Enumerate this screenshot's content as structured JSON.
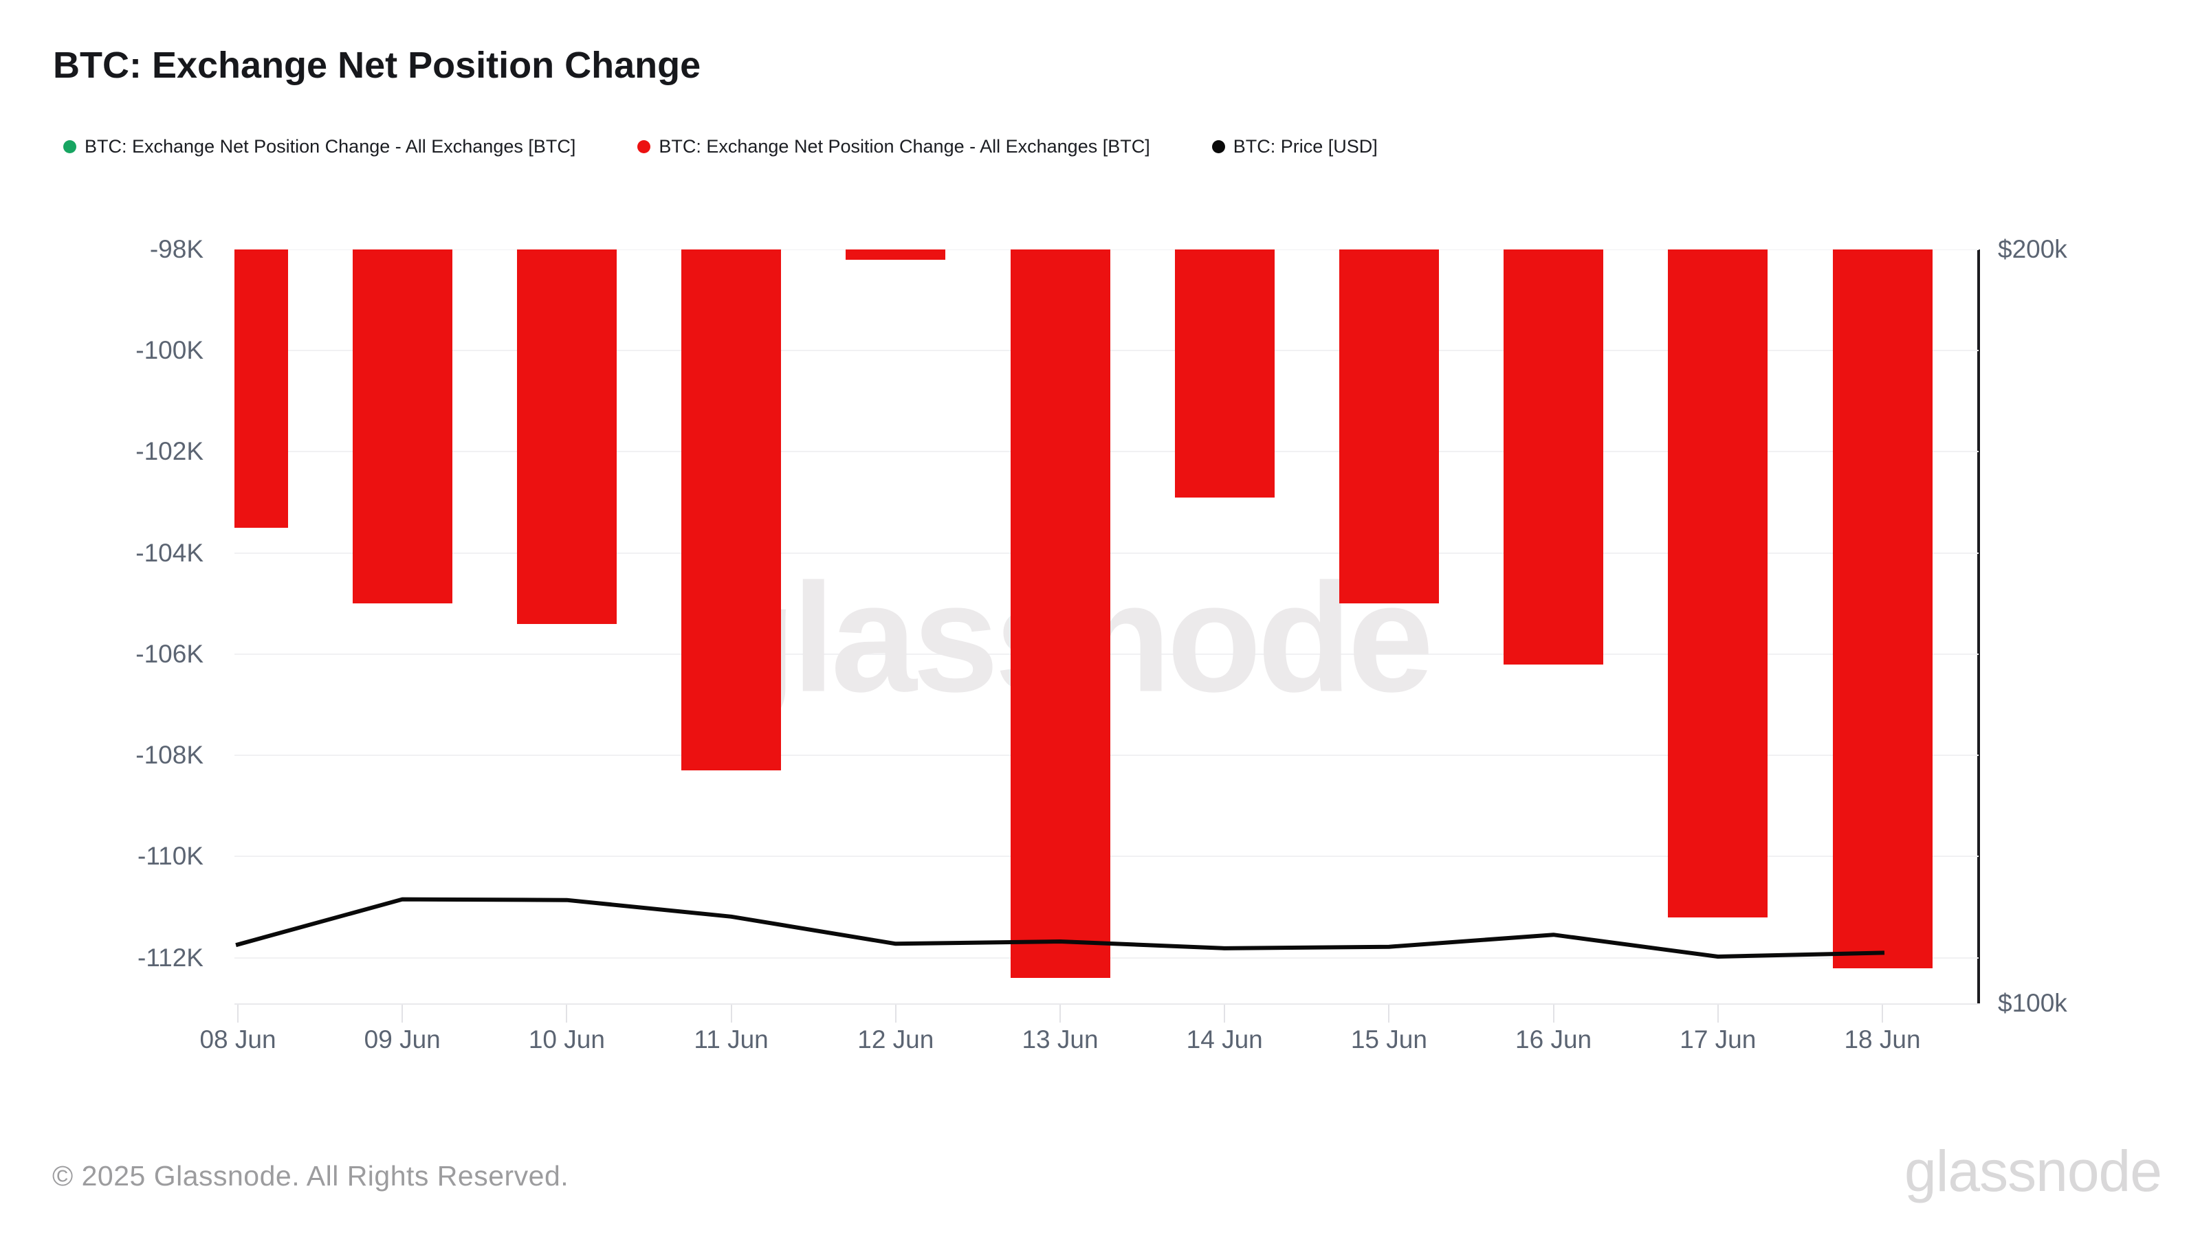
{
  "title": "BTC: Exchange Net Position Change",
  "legend": [
    {
      "label": "BTC: Exchange Net Position Change - All Exchanges [BTC]",
      "color": "#17a561"
    },
    {
      "label": "BTC: Exchange Net Position Change - All Exchanges [BTC]",
      "color": "#ec1111"
    },
    {
      "label": "BTC: Price [USD]",
      "color": "#0a0a0a"
    }
  ],
  "watermark": {
    "text": "glassnode"
  },
  "footer": {
    "copyright": "© 2025 Glassnode. All Rights Reserved.",
    "brand": "glassnode"
  },
  "colors": {
    "bar": "#ec1111",
    "price_line": "#0a0a0a",
    "gridline": "#f1f1f3",
    "axis_text": "#5b6472"
  },
  "chart_data": {
    "type": "bar",
    "title": "BTC: Exchange Net Position Change",
    "categories": [
      "08 Jun",
      "09 Jun",
      "10 Jun",
      "11 Jun",
      "12 Jun",
      "13 Jun",
      "14 Jun",
      "15 Jun",
      "16 Jun",
      "17 Jun",
      "18 Jun"
    ],
    "series": [
      {
        "name": "BTC: Exchange Net Position Change - All Exchanges [BTC]",
        "type": "bar",
        "color": "#ec1111",
        "yaxis": "left",
        "unit": "BTC",
        "values": [
          -103500,
          -105000,
          -105400,
          -108300,
          -98200,
          -112400,
          -102900,
          -105000,
          -106200,
          -111200,
          -112200
        ]
      },
      {
        "name": "BTC: Price [USD]",
        "type": "line",
        "color": "#0a0a0a",
        "yaxis": "right",
        "unit": "USD",
        "values": [
          107800,
          113800,
          113700,
          111500,
          107900,
          108200,
          107300,
          107500,
          109100,
          106200,
          106700
        ]
      }
    ],
    "left_axis": {
      "tick_labels": [
        "-98K",
        "-100K",
        "-102K",
        "-104K",
        "-106K",
        "-108K",
        "-110K",
        "-112K"
      ],
      "tick_values": [
        -98000,
        -100000,
        -102000,
        -104000,
        -106000,
        -108000,
        -110000,
        -112000
      ],
      "ylim": [
        -112900,
        -98000
      ]
    },
    "right_axis": {
      "tick_labels": [
        "$200k",
        "$100k"
      ],
      "tick_values": [
        200000,
        100000
      ],
      "ylim": [
        100000,
        200000
      ]
    },
    "grid": "horizontal",
    "legend_position": "top"
  }
}
